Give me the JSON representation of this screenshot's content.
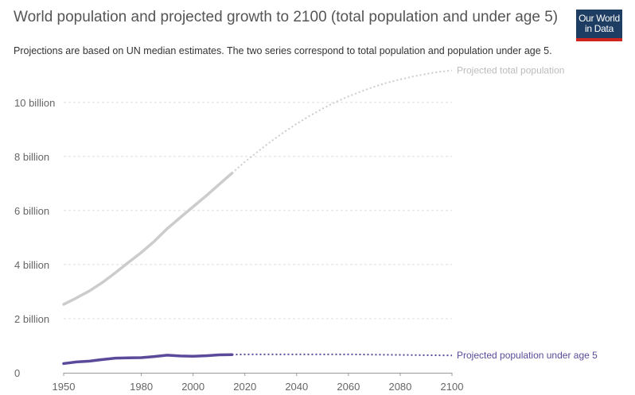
{
  "header": {
    "title": "World population and projected growth to 2100 (total population and under age 5)",
    "subtitle": "Projections are based on UN median estimates. The two series correspond to total population and population under age 5.",
    "logo_line1": "Our World",
    "logo_line2": "in Data"
  },
  "colors": {
    "total": "#cccccc",
    "under5": "#5b4a9a",
    "grid": "#dddddd",
    "axis": "#666666"
  },
  "chart_data": {
    "type": "line",
    "x_ticks": [
      1950,
      1980,
      2000,
      2020,
      2040,
      2060,
      2080,
      2100
    ],
    "x_tick_labels": [
      "1950",
      "1980",
      "2000",
      "2020",
      "2040",
      "2060",
      "2080",
      "2100"
    ],
    "y_ticks": [
      0,
      2,
      4,
      6,
      8,
      10
    ],
    "y_tick_labels": [
      "0",
      "2 billion",
      "4 billion",
      "6 billion",
      "8 billion",
      "10 billion"
    ],
    "xlim": [
      1950,
      2100
    ],
    "ylim": [
      0,
      11.2
    ],
    "grid": true,
    "series": [
      {
        "key": "total",
        "name": "Projected total population",
        "historical": {
          "x": [
            1950,
            1955,
            1960,
            1965,
            1970,
            1975,
            1980,
            1985,
            1990,
            1995,
            2000,
            2005,
            2010,
            2015
          ],
          "y": [
            2.53,
            2.77,
            3.03,
            3.34,
            3.7,
            4.08,
            4.45,
            4.86,
            5.33,
            5.74,
            6.14,
            6.54,
            6.96,
            7.38
          ]
        },
        "projected": {
          "x": [
            2015,
            2020,
            2025,
            2030,
            2035,
            2040,
            2045,
            2050,
            2055,
            2060,
            2065,
            2070,
            2075,
            2080,
            2085,
            2090,
            2095,
            2100
          ],
          "y": [
            7.38,
            7.8,
            8.18,
            8.55,
            8.89,
            9.21,
            9.5,
            9.77,
            10.01,
            10.22,
            10.41,
            10.58,
            10.73,
            10.85,
            10.96,
            11.05,
            11.13,
            11.18
          ]
        }
      },
      {
        "key": "under5",
        "name": "Projected population under age 5",
        "historical": {
          "x": [
            1950,
            1955,
            1960,
            1965,
            1970,
            1975,
            1980,
            1985,
            1990,
            1995,
            2000,
            2005,
            2010,
            2015
          ],
          "y": [
            0.34,
            0.4,
            0.43,
            0.49,
            0.54,
            0.55,
            0.56,
            0.6,
            0.65,
            0.62,
            0.61,
            0.63,
            0.66,
            0.67
          ]
        },
        "projected": {
          "x": [
            2015,
            2020,
            2025,
            2030,
            2040,
            2050,
            2060,
            2070,
            2080,
            2090,
            2100
          ],
          "y": [
            0.67,
            0.68,
            0.68,
            0.68,
            0.68,
            0.68,
            0.68,
            0.67,
            0.66,
            0.65,
            0.64
          ]
        }
      }
    ]
  }
}
